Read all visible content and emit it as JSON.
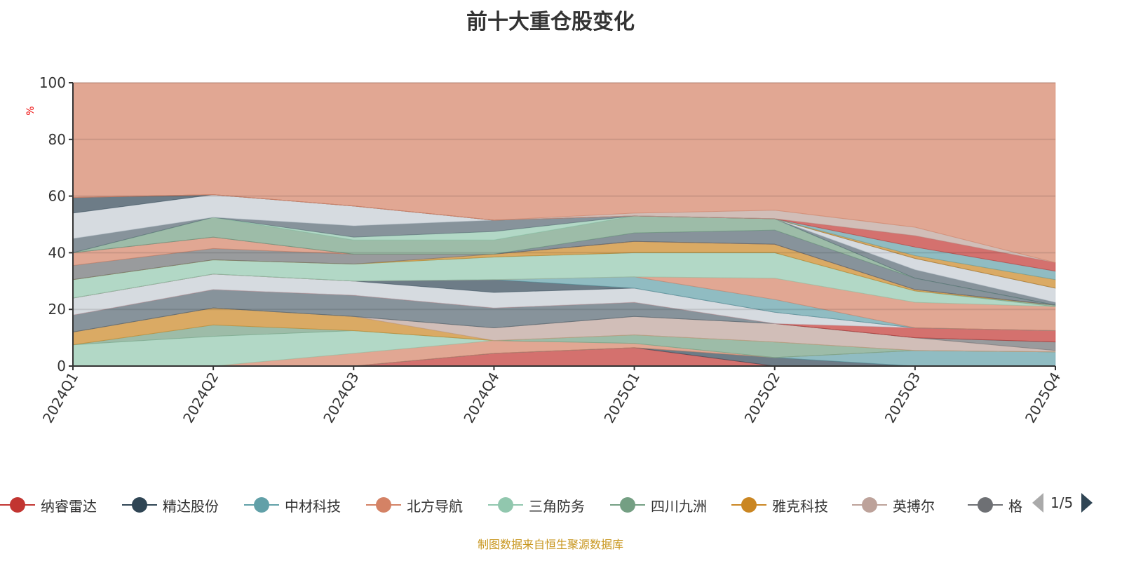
{
  "chart_data": {
    "type": "area",
    "stacked": true,
    "title": "前十大重仓股变化",
    "ylabel": "%",
    "ylim": [
      0,
      100
    ],
    "yticks": [
      0,
      20,
      40,
      60,
      80,
      100
    ],
    "categories": [
      "2024Q1",
      "2024Q2",
      "2024Q3",
      "2024Q4",
      "2025Q1",
      "2025Q2",
      "2025Q3",
      "2025Q4"
    ],
    "grid": true,
    "legend_position": "bottom",
    "legend_page": "1/5",
    "series": [
      {
        "name": "纳睿雷达",
        "color": "#c23531",
        "values": [
          0,
          0,
          0,
          4.5,
          6.5,
          0,
          0,
          0
        ]
      },
      {
        "name": "精达股份",
        "color": "#2f4554",
        "values": [
          0,
          0,
          0,
          0,
          0,
          3,
          0,
          0
        ]
      },
      {
        "name": "中材科技",
        "color": "#61a0a8",
        "values": [
          0,
          0,
          0,
          0,
          0,
          0,
          5.5,
          5
        ]
      },
      {
        "name": "北方导航",
        "color": "#d48265",
        "values": [
          0,
          0,
          4.5,
          4.5,
          1.5,
          0,
          0,
          0
        ]
      },
      {
        "name": "三角防务",
        "color": "#91c7ae",
        "values": [
          7.5,
          10.5,
          8,
          0,
          0,
          0,
          0,
          0
        ]
      },
      {
        "name": "四川九洲",
        "color": "#749f83",
        "values": [
          0,
          4,
          0,
          0,
          3,
          5.5,
          0,
          0
        ]
      },
      {
        "name": "雅克科技",
        "color": "#ca8622",
        "values": [
          4.5,
          6,
          5,
          0,
          0,
          0,
          0,
          0
        ]
      },
      {
        "name": "英搏尔",
        "color": "#bda29a",
        "values": [
          0,
          0,
          0,
          4.5,
          6.5,
          6.5,
          4.5,
          0.5
        ]
      },
      {
        "name": "格",
        "color": "#6e7074",
        "values": [
          0,
          0,
          0,
          0,
          0,
          0,
          0,
          3
        ]
      },
      {
        "color": "#546570",
        "values": [
          6,
          6.5,
          7.5,
          7,
          5,
          0,
          0,
          0
        ]
      },
      {
        "color": "#c23531",
        "values": [
          0,
          0,
          0,
          0,
          0,
          0,
          3.5,
          4
        ]
      },
      {
        "color": "#c4ccd3",
        "values": [
          6,
          5.5,
          5,
          5.5,
          5,
          4,
          0,
          0
        ]
      },
      {
        "color": "#2f4554",
        "values": [
          0,
          0,
          0,
          4.5,
          0,
          0,
          0,
          0
        ]
      },
      {
        "color": "#61a0a8",
        "values": [
          0,
          0,
          0,
          0,
          4,
          4.5,
          0,
          0
        ]
      },
      {
        "color": "#d48265",
        "values": [
          0,
          0,
          0,
          0,
          0,
          7.5,
          9,
          8.5
        ]
      },
      {
        "color": "#91c7ae",
        "values": [
          6.5,
          5,
          6,
          8,
          8.5,
          9,
          4,
          0
        ]
      },
      {
        "color": "#749f83",
        "values": [
          0,
          0,
          0,
          0,
          0,
          0,
          0,
          0.5
        ]
      },
      {
        "color": "#ca8622",
        "values": [
          0,
          0,
          0,
          1,
          4,
          3,
          0.5,
          0
        ]
      },
      {
        "color": "#6e7074",
        "values": [
          5,
          4,
          3.5,
          0,
          0,
          0,
          0,
          0
        ]
      },
      {
        "color": "#d48265",
        "values": [
          4.5,
          4,
          0,
          0,
          0,
          0,
          0,
          0
        ]
      },
      {
        "color": "#546570",
        "values": [
          0,
          0,
          0,
          0,
          3,
          5,
          4,
          0
        ]
      },
      {
        "color": "#749f83",
        "values": [
          0,
          7,
          5,
          5,
          6,
          4,
          0,
          0
        ]
      },
      {
        "color": "#91c7ae",
        "values": [
          0,
          0,
          1,
          3,
          0,
          0,
          0,
          0
        ]
      },
      {
        "color": "#546570",
        "values": [
          5,
          0,
          4,
          4,
          0,
          0,
          3,
          1
        ]
      },
      {
        "color": "#c4ccd3",
        "values": [
          9,
          8,
          7,
          0,
          0,
          0,
          4,
          5
        ]
      },
      {
        "color": "#2f4554",
        "values": [
          5.5,
          0,
          0,
          0,
          0,
          0,
          0,
          0
        ]
      },
      {
        "color": "#ca8622",
        "values": [
          0,
          0,
          0,
          0,
          0,
          0,
          1,
          3
        ]
      },
      {
        "color": "#61a0a8",
        "values": [
          0,
          0,
          0,
          0,
          0,
          0,
          3,
          3
        ]
      },
      {
        "color": "#c23531",
        "values": [
          0,
          0,
          0,
          0,
          0,
          0,
          4,
          3
        ]
      },
      {
        "color": "#bda29a",
        "values": [
          0,
          0,
          0,
          0,
          1,
          3,
          3,
          0
        ]
      },
      {
        "color": "#d48265",
        "values": "remainder"
      }
    ]
  },
  "footer": "制图数据来自恒生聚源数据库"
}
